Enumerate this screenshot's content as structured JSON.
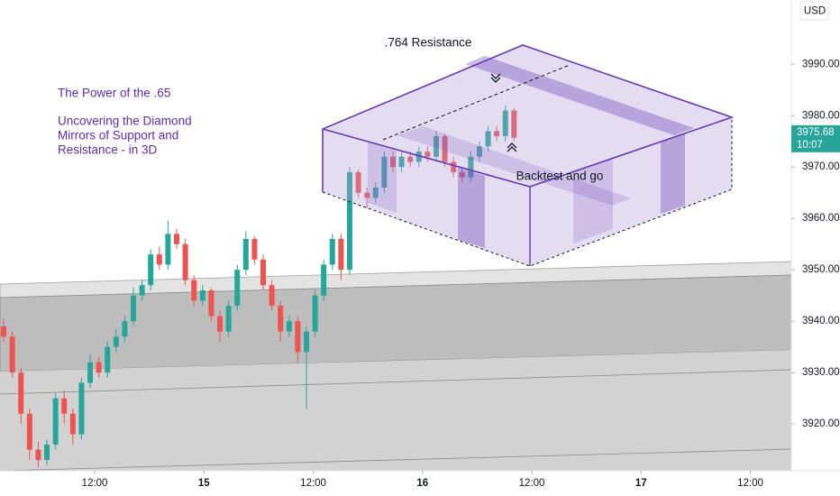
{
  "chart_data": {
    "type": "candlestick",
    "title": "The Power of the .65",
    "subtitle": [
      "Uncovering the Diamond",
      "Mirrors of Support and",
      "Resistance - in 3D"
    ],
    "annotations": [
      ".764 Resistance",
      "Backtest and go"
    ],
    "currency": "USD",
    "last_price": 3975.68,
    "countdown": "10:07",
    "up_color": "#26a69a",
    "down_color": "#ef5350",
    "x": [
      2,
      2.95,
      3.9,
      4.85,
      5.8,
      6.75,
      7.7,
      8.65,
      9.6,
      10.55,
      11.5,
      12.45,
      13.4,
      14.35,
      15.3,
      16.25,
      17.2,
      18.15,
      19.1,
      20.05,
      21,
      21.95,
      22.9,
      23.85,
      24.8,
      25.75,
      26.7,
      27.65,
      28.6,
      29.55,
      30.5,
      31.45,
      32.4,
      33.35,
      34.3,
      35.25,
      36.2,
      37.15,
      38.1,
      39.05,
      40,
      40.95,
      41.9,
      42.85,
      43.8,
      44.75,
      45.7,
      46.65,
      47.6,
      48.55,
      49.5,
      50.45,
      51.4,
      52.35,
      53.3,
      54.25,
      55.2,
      56.15,
      57.1,
      58.05
    ],
    "open": [
      3939,
      3937,
      3930,
      3922,
      3915,
      3913,
      3916,
      3925,
      3922,
      3918,
      3928,
      3932,
      3930,
      3935,
      3937,
      3940,
      3945,
      3947,
      3953,
      3951,
      3957,
      3955,
      3948,
      3944,
      3946,
      3941,
      3938,
      3943,
      3950,
      3956,
      3952,
      3947,
      3943,
      3938,
      3940,
      3934,
      3938,
      3945,
      3951,
      3956,
      3950,
      3969,
      3965,
      3964,
      3966,
      3972,
      3970,
      3972,
      3971,
      3973,
      3972,
      3976,
      3971,
      3969,
      3968,
      3972,
      3974,
      3977,
      3976,
      3981
    ],
    "high": [
      3940.5,
      3938,
      3931,
      3923,
      3916.5,
      3917,
      3926,
      3926.5,
      3923,
      3929,
      3933.5,
      3933,
      3936,
      3938.5,
      3941,
      3946.5,
      3948,
      3954,
      3954.5,
      3959.5,
      3958,
      3956,
      3949,
      3947,
      3946.5,
      3942,
      3944,
      3951,
      3957.5,
      3956.5,
      3953,
      3948,
      3944,
      3941,
      3941,
      3939,
      3946,
      3952,
      3957,
      3957,
      3970,
      3969.5,
      3966,
      3967,
      3973,
      3973,
      3973,
      3973,
      3974,
      3974,
      3977,
      3976.5,
      3972,
      3970,
      3973,
      3975,
      3978,
      3978,
      3982,
      3981.5
    ],
    "low": [
      3936,
      3929,
      3920,
      3913,
      3911.5,
      3912,
      3915,
      3920,
      3916,
      3917,
      3927,
      3929,
      3929,
      3934,
      3936,
      3939,
      3944,
      3946,
      3950,
      3950,
      3954,
      3947,
      3943,
      3943,
      3940,
      3936,
      3937,
      3942,
      3949,
      3951,
      3946,
      3942,
      3936,
      3937,
      3932,
      3923,
      3937,
      3944,
      3950,
      3948,
      3949,
      3964,
      3962,
      3963,
      3965,
      3969,
      3969,
      3970,
      3970,
      3971,
      3971,
      3970,
      3968,
      3967,
      3967,
      3971,
      3973,
      3975,
      3975,
      3975
    ],
    "close": [
      3937,
      3930,
      3922,
      3915,
      3913,
      3916,
      3925,
      3922,
      3918,
      3928,
      3932,
      3930,
      3935,
      3937,
      3940,
      3945,
      3947,
      3953,
      3951,
      3957,
      3955,
      3948,
      3944,
      3946,
      3941,
      3938,
      3943,
      3950,
      3956,
      3952,
      3947,
      3943,
      3938,
      3940,
      3934,
      3938,
      3945,
      3951,
      3956,
      3950,
      3969,
      3965,
      3964,
      3966,
      3972,
      3970,
      3972,
      3971,
      3973,
      3972,
      3976,
      3971,
      3969,
      3968,
      3972,
      3974,
      3977,
      3976,
      3981,
      3975.68
    ],
    "xlim": [
      1.6,
      88.5
    ],
    "ylim": [
      3910.9,
      4002.5
    ],
    "xticks": [
      {
        "value": 12,
        "label": "12:00"
      },
      {
        "value": 24,
        "label": "15"
      },
      {
        "value": 36,
        "label": "12:00"
      },
      {
        "value": 48,
        "label": "16"
      },
      {
        "value": 60,
        "label": "12:00"
      },
      {
        "value": 72,
        "label": "17"
      },
      {
        "value": 84,
        "label": "12:00"
      }
    ],
    "yticks": [
      {
        "value": 3920,
        "label": "3920.00"
      },
      {
        "value": 3930,
        "label": "3930.00"
      },
      {
        "value": 3940,
        "label": "3940.00"
      },
      {
        "value": 3950,
        "label": "3950.00"
      },
      {
        "value": 3960,
        "label": "3960.00"
      },
      {
        "value": 3970,
        "label": "3970.00"
      },
      {
        "value": 3980,
        "label": "3980.00"
      },
      {
        "value": 3990,
        "label": "3990.00"
      }
    ],
    "grid": false
  }
}
